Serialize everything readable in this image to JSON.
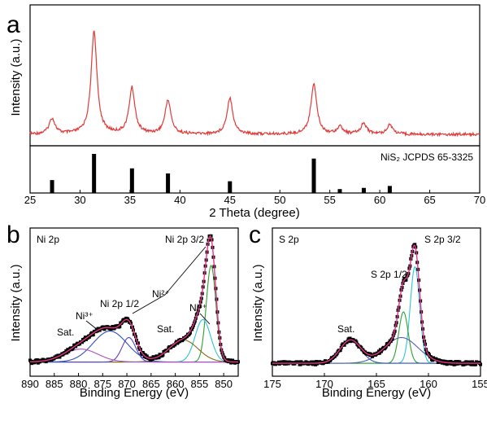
{
  "chart_data": [
    {
      "panel": "a",
      "type": "line",
      "xlabel": "2 Theta (degree)",
      "ylabel": "Intensity (a.u.)",
      "xlim": [
        25,
        70
      ],
      "x_ticks": [
        25,
        30,
        35,
        40,
        45,
        50,
        55,
        60,
        65,
        70
      ],
      "y_ticks_shown": false,
      "series": [
        {
          "color": "#e03a3a",
          "peaks": [
            {
              "x": 27.2,
              "height": 0.13
            },
            {
              "x": 31.4,
              "height": 0.85
            },
            {
              "x": 35.2,
              "height": 0.38
            },
            {
              "x": 38.8,
              "height": 0.28
            },
            {
              "x": 45.0,
              "height": 0.3
            },
            {
              "x": 53.4,
              "height": 0.42
            },
            {
              "x": 56.0,
              "height": 0.06
            },
            {
              "x": 58.4,
              "height": 0.09
            },
            {
              "x": 61.0,
              "height": 0.08
            }
          ]
        }
      ],
      "reference": {
        "label": "NiS₂ JCPDS 65-3325",
        "color": "#000000",
        "bars": [
          {
            "x": 27.2,
            "value": 0.33
          },
          {
            "x": 31.4,
            "value": 1.0
          },
          {
            "x": 35.2,
            "value": 0.63
          },
          {
            "x": 38.8,
            "value": 0.5
          },
          {
            "x": 45.0,
            "value": 0.3
          },
          {
            "x": 53.4,
            "value": 0.88
          },
          {
            "x": 56.0,
            "value": 0.1
          },
          {
            "x": 58.4,
            "value": 0.13
          },
          {
            "x": 61.0,
            "value": 0.18
          }
        ]
      }
    },
    {
      "panel": "b",
      "type": "line",
      "title": "Ni 2p",
      "xlabel": "Binding Energy (eV)",
      "ylabel": "Intensity (a.u.)",
      "xlim": [
        890,
        847
      ],
      "x_ticks": [
        890,
        885,
        880,
        875,
        870,
        865,
        860,
        855,
        850
      ],
      "baseline": 0.06,
      "components": [
        {
          "center": 852.6,
          "height": 0.75,
          "width": 1.0,
          "color": "#2ca02c"
        },
        {
          "center": 854.3,
          "height": 0.33,
          "width": 1.6,
          "color": "#2ec4d6"
        },
        {
          "center": 858.3,
          "height": 0.17,
          "width": 3.0,
          "color": "#8b6914"
        },
        {
          "center": 869.6,
          "height": 0.19,
          "width": 1.4,
          "color": "#5b3fc4"
        },
        {
          "center": 873.5,
          "height": 0.24,
          "width": 3.5,
          "color": "#2f4fbf"
        },
        {
          "center": 879.5,
          "height": 0.1,
          "width": 3.5,
          "color": "#b04fc4"
        }
      ],
      "envelope_color": "#e8338a",
      "data_color": "#000000",
      "annotations": [
        {
          "text": "Ni 2p 3/2"
        },
        {
          "text": "Ni 2p 1/2"
        },
        {
          "text": "Sat.",
          "id": "sat1"
        },
        {
          "text": "Sat.",
          "id": "sat2"
        },
        {
          "text": "Ni³⁺",
          "id": "ni3a"
        },
        {
          "text": "Ni³⁺",
          "id": "ni3b"
        },
        {
          "text": "Ni²⁺"
        }
      ]
    },
    {
      "panel": "c",
      "type": "line",
      "title": "S 2p",
      "xlabel": "Binding Energy (eV)",
      "ylabel": "Intensity (a.u.)",
      "xlim": [
        175,
        155
      ],
      "x_ticks": [
        175,
        170,
        165,
        160,
        155
      ],
      "baseline": 0.05,
      "components": [
        {
          "center": 161.3,
          "height": 0.75,
          "width": 0.45,
          "color": "#2ec4d6"
        },
        {
          "center": 162.4,
          "height": 0.4,
          "width": 0.45,
          "color": "#2ca02c"
        },
        {
          "center": 162.6,
          "height": 0.2,
          "width": 1.6,
          "color": "#5b5fb0"
        },
        {
          "center": 167.5,
          "height": 0.18,
          "width": 1.0,
          "color": "#2f4fbf"
        }
      ],
      "envelope_color": "#e8338a",
      "data_color": "#000000",
      "annotations": [
        {
          "text": "S 2p 3/2"
        },
        {
          "text": "S 2p 1/2"
        },
        {
          "text": "Sat."
        }
      ]
    }
  ],
  "labels": {
    "a": "a",
    "b": "b",
    "c": "c",
    "ref_label": "NiS₂ JCPDS 65-3325",
    "ni_title": "Ni 2p",
    "ni_32": "Ni 2p 3/2",
    "ni_12": "Ni 2p 1/2",
    "sat": "Sat.",
    "ni3": "Ni³⁺",
    "ni2": "Ni²⁺",
    "s_title": "S 2p",
    "s_32": "S 2p 3/2",
    "s_12": "S 2p 1/2",
    "xrd_xlabel": "2 Theta (degree)",
    "xps_xlabel": "Binding Energy (eV)",
    "ylabel": "Intensity (a.u.)"
  }
}
